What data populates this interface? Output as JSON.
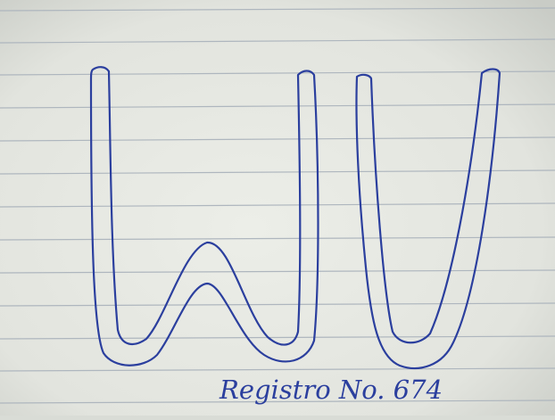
{
  "photo": {
    "subject": "hand-drawn outline letters on lined notebook paper",
    "paper_color": "#e4e6e0",
    "rule_line_color": "#aeb6be",
    "ink_color": "#2b3f9e"
  },
  "drawing": {
    "letters": [
      "W",
      "V"
    ],
    "caption": "Registro No. 674"
  }
}
